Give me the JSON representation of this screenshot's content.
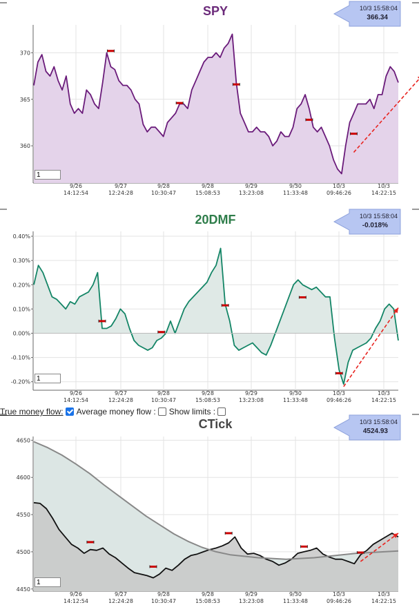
{
  "options": {
    "true_money_flow_label": "True money flow:",
    "true_money_flow_checked": true,
    "average_money_flow_label": "Average money flow :",
    "average_money_flow_checked": false,
    "show_limits_label": "Show limits :",
    "show_limits_checked": false
  },
  "x_ticks": [
    {
      "date": "9/26",
      "time": "14:12:54"
    },
    {
      "date": "9/27",
      "time": "12:24:28"
    },
    {
      "date": "9/28",
      "time": "10:30:47"
    },
    {
      "date": "9/28",
      "time": "15:08:53"
    },
    {
      "date": "9/29",
      "time": "13:23:08"
    },
    {
      "date": "9/30",
      "time": "11:33:48"
    },
    {
      "date": "10/3",
      "time": "09:46:26"
    },
    {
      "date": "10/3",
      "time": "14:22:15"
    }
  ],
  "chart_data": [
    {
      "type": "area",
      "title": "SPY",
      "title_color": "#6b2a7a",
      "line_color": "#6a1b7a",
      "fill_color": "#e4d3ea",
      "ylim": [
        356,
        373
      ],
      "y_ticks": [
        360,
        365,
        370
      ],
      "y_tick_labels": [
        "360",
        "365",
        "370"
      ],
      "badge": {
        "time": "10/3 15:58:04",
        "value": "366.34"
      },
      "zoom_value": "1",
      "grid": true,
      "series": [
        {
          "values": [
            366.5,
            369,
            369.8,
            368,
            367.5,
            368.5,
            367,
            366,
            367.5,
            364.5,
            363.5,
            364,
            363.5,
            366,
            365.5,
            364.5,
            364,
            366.8,
            370,
            368.5,
            368.2,
            367,
            366.5,
            366.5,
            366,
            365,
            364.5,
            362.3,
            361.5,
            362,
            362,
            361.5,
            361,
            362.5,
            363,
            363.5,
            364.5,
            364.5,
            364,
            366,
            367,
            368,
            369,
            369.5,
            369.5,
            370,
            369.5,
            370.5,
            371,
            372,
            366.8,
            363.5,
            362.5,
            361.5,
            361.5,
            362,
            361.5,
            361.5,
            361,
            360,
            360.5,
            361.5,
            361,
            361,
            362,
            364,
            364.5,
            365.5,
            364,
            362,
            361.5,
            362,
            361,
            360,
            358.5,
            357.5,
            357,
            360,
            362.5,
            363.5,
            364.5,
            364.5,
            364.5,
            365,
            364,
            365.5,
            365.5,
            367.5,
            368.5,
            368,
            366.8
          ]
        }
      ],
      "markers": [
        {
          "x_index": 19,
          "y": 370.2
        },
        {
          "x_index": 36,
          "y": 364.6
        },
        {
          "x_index": 50,
          "y": 366.6
        },
        {
          "x_index": 68,
          "y": 362.8
        },
        {
          "x_index": 79,
          "y": 361.3
        }
      ],
      "trend_arrow": {
        "from": [
          79,
          359.3
        ],
        "to": [
          96,
          367.6
        ]
      }
    },
    {
      "type": "area",
      "title": "20DMF",
      "title_color": "#2e7d4a",
      "line_color": "#138566",
      "fill_color": "#dfe9e6",
      "ylim": [
        -0.235,
        0.42
      ],
      "y_ticks": [
        -0.2,
        -0.1,
        0.0,
        0.1,
        0.2,
        0.3,
        0.4
      ],
      "y_tick_labels": [
        "-0.20%",
        "-0.10%",
        "0.00%",
        "0.10%",
        "0.20%",
        "0.30%",
        "0.40%"
      ],
      "badge": {
        "time": "10/3 15:58:04",
        "value": "-0.018%"
      },
      "zoom_value": "1",
      "grid": true,
      "series": [
        {
          "values": [
            0.2,
            0.28,
            0.25,
            0.2,
            0.15,
            0.14,
            0.12,
            0.1,
            0.13,
            0.12,
            0.15,
            0.16,
            0.17,
            0.2,
            0.25,
            0.02,
            0.02,
            0.03,
            0.06,
            0.1,
            0.08,
            0.02,
            -0.03,
            -0.05,
            -0.06,
            -0.07,
            -0.06,
            -0.03,
            -0.02,
            0.0,
            0.05,
            0.0,
            0.05,
            0.1,
            0.13,
            0.15,
            0.17,
            0.19,
            0.21,
            0.25,
            0.28,
            0.35,
            0.12,
            0.05,
            -0.05,
            -0.07,
            -0.06,
            -0.05,
            -0.04,
            -0.06,
            -0.08,
            -0.09,
            -0.05,
            0.0,
            0.05,
            0.1,
            0.15,
            0.2,
            0.22,
            0.2,
            0.19,
            0.18,
            0.19,
            0.17,
            0.15,
            0.15,
            -0.02,
            -0.15,
            -0.21,
            -0.12,
            -0.07,
            -0.06,
            -0.05,
            -0.04,
            -0.02,
            0.02,
            0.05,
            0.1,
            0.12,
            0.1,
            -0.03
          ]
        }
      ],
      "markers": [
        {
          "x_index": 15,
          "y": 0.05
        },
        {
          "x_index": 28,
          "y": 0.005
        },
        {
          "x_index": 42,
          "y": 0.115
        },
        {
          "x_index": 59,
          "y": 0.148
        },
        {
          "x_index": 67,
          "y": -0.165
        }
      ],
      "trend_arrow": {
        "from": [
          68,
          -0.22
        ],
        "to": [
          80,
          0.105
        ]
      }
    },
    {
      "type": "area",
      "title": "CTick",
      "title_color": "#444444",
      "line_color": "#111111",
      "fill_color": "#c8c8c8",
      "ylim": [
        4447,
        4655
      ],
      "y_ticks": [
        4450,
        4500,
        4550,
        4600,
        4650
      ],
      "y_tick_labels": [
        "4450",
        "4500",
        "4550",
        "4600",
        "4650"
      ],
      "badge": {
        "time": "10/3 15:58:04",
        "value": "4524.93"
      },
      "zoom_value": "1",
      "grid": true,
      "series": [
        {
          "name": "",
          "values": [
            4566,
            4565,
            4558,
            4545,
            4530,
            4520,
            4510,
            4505,
            4498,
            4503,
            4502,
            4505,
            4497,
            4492,
            4485,
            4478,
            4472,
            4470,
            4468,
            4465,
            4470,
            4478,
            4475,
            4482,
            4490,
            4495,
            4497,
            4500,
            4503,
            4505,
            4508,
            4512,
            4520,
            4505,
            4497,
            4498,
            4495,
            4490,
            4487,
            4482,
            4485,
            4490,
            4498,
            4500,
            4502,
            4505,
            4497,
            4493,
            4490,
            4490,
            4487,
            4484,
            4496,
            4502,
            4510,
            4515,
            4520,
            4525,
            4520
          ],
          "color": "#111111"
        },
        {
          "name": "",
          "values": [
            4648,
            4640,
            4630,
            4618,
            4605,
            4590,
            4576,
            4562,
            4548,
            4536,
            4524,
            4514,
            4506,
            4500,
            4496,
            4494,
            4492,
            4491,
            4490,
            4491,
            4492,
            4494,
            4496,
            4498,
            4499,
            4500,
            4501
          ],
          "color": "#888888",
          "fill": "#dce6e4"
        }
      ],
      "markers": [
        {
          "x_index": 9,
          "y": 4513
        },
        {
          "x_index": 19,
          "y": 4480
        },
        {
          "x_index": 31,
          "y": 4525
        },
        {
          "x_index": 43,
          "y": 4507
        },
        {
          "x_index": 52,
          "y": 4499
        }
      ],
      "trend_arrow": {
        "from": [
          52,
          4487
        ],
        "to": [
          58,
          4525
        ]
      }
    }
  ]
}
